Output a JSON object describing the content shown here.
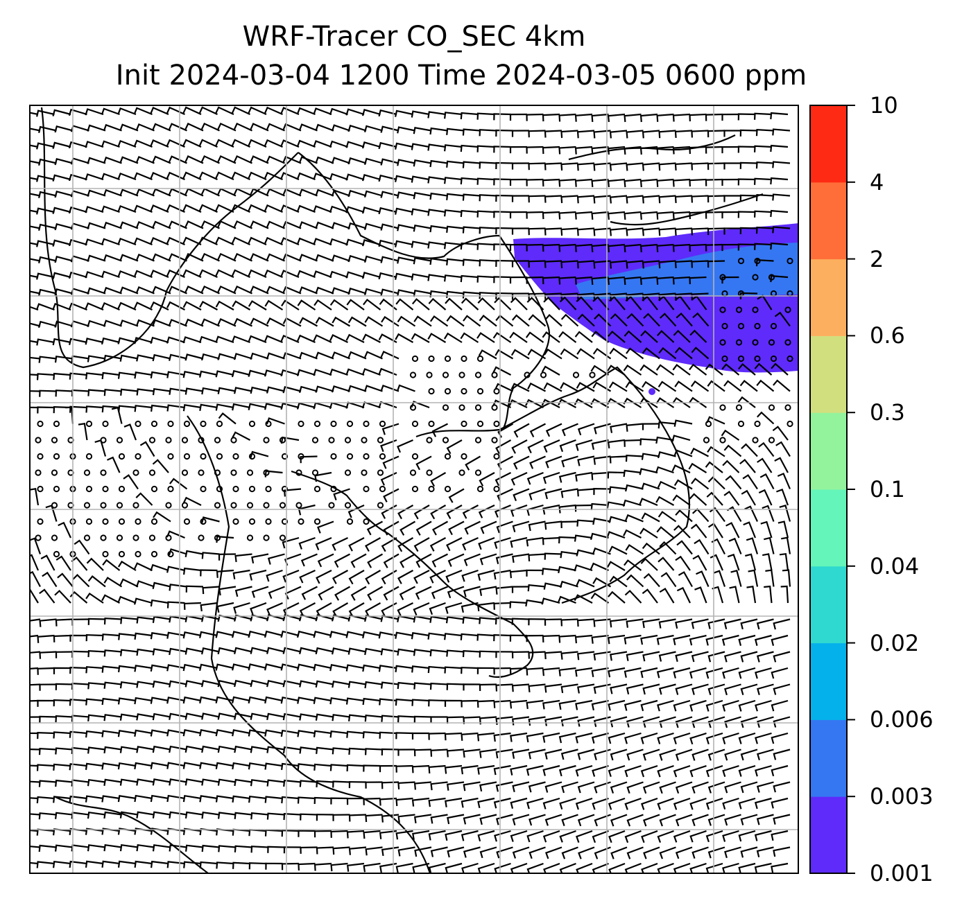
{
  "title": {
    "line1": "WRF-Tracer CO_SEC 4km",
    "line2": "Init 2024-03-04 1200 Time 2024-03-05 0600 ppm"
  },
  "colorbar": {
    "levels": [
      "0.001",
      "0.003",
      "0.006",
      "0.02",
      "0.04",
      "0.1",
      "0.3",
      "0.6",
      "2",
      "4",
      "10"
    ],
    "colors": [
      "#5e2bfa",
      "#3577f2",
      "#05b1ea",
      "#2fd9cf",
      "#63f5b9",
      "#93f39d",
      "#d2df7e",
      "#fcaf5e",
      "#ff6e38",
      "#ff2a14"
    ]
  },
  "map": {
    "grid": "on",
    "tracer_fill_color": "#5e2bfa",
    "tracer_core_color": "#3577f2",
    "wind_symbol": "barbs",
    "calm_symbol": "circle"
  }
}
